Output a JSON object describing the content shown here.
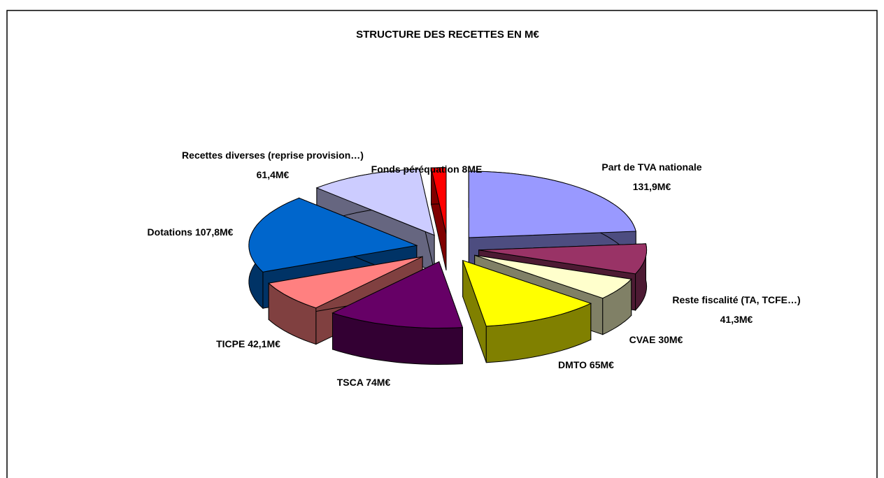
{
  "chart_data": {
    "type": "pie3d",
    "title": "STRUCTURE DES RECETTES EN M€",
    "categories": [
      "Part de TVA nationale",
      "Reste fiscalité (TA, TCFE…)",
      "CVAE",
      "DMTO",
      "TSCA",
      "TICPE",
      "Dotations",
      "Recettes diverses (reprise provision…)",
      "Fonds péréquation"
    ],
    "values": [
      131.9,
      41.3,
      30,
      65,
      74,
      42.1,
      107.8,
      61.4,
      8
    ],
    "value_labels": [
      "131,9M€",
      "41,3M€",
      "30M€",
      "65M€",
      "74M€",
      "42,1M€",
      "107,8M€",
      "61,4M€",
      "8ME"
    ],
    "colors": [
      "#9999ff",
      "#993366",
      "#ffffcc",
      "#ffff00",
      "#660066",
      "#ff8080",
      "#0066cc",
      "#ccccff",
      "#ff0000"
    ],
    "side_colors": [
      "#4d4d80",
      "#4d1a33",
      "#808066",
      "#808000",
      "#330033",
      "#804040",
      "#003366",
      "#666680",
      "#800000"
    ]
  }
}
